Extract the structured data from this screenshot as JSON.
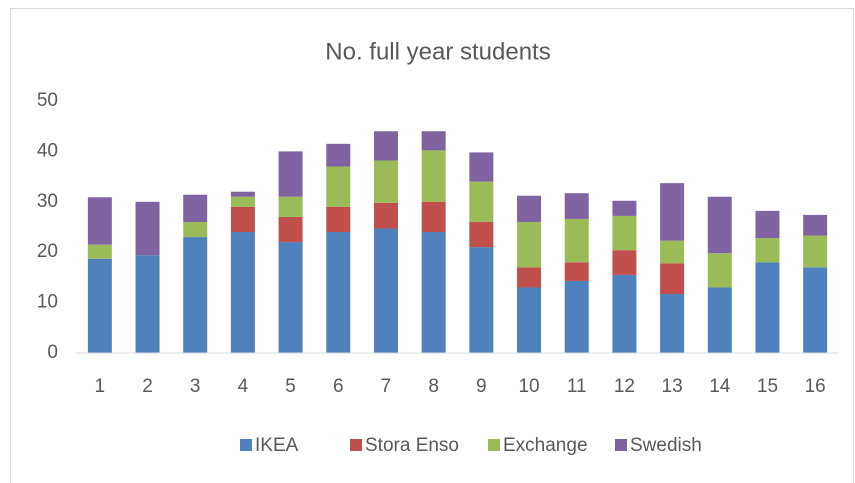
{
  "chart_data": {
    "type": "bar",
    "stacked": true,
    "title": "No. full year students",
    "categories": [
      "1",
      "2",
      "3",
      "4",
      "5",
      "6",
      "7",
      "8",
      "9",
      "10",
      "11",
      "12",
      "13",
      "14",
      "15",
      "16"
    ],
    "series": [
      {
        "name": "IKEA",
        "color": "#4f81bd",
        "values": [
          18.7,
          19.4,
          23,
          24,
          22,
          24,
          24.7,
          24,
          21,
          13,
          14.3,
          15.5,
          11.7,
          13,
          18,
          17
        ]
      },
      {
        "name": "Stora Enso",
        "color": "#c0504d",
        "values": [
          0,
          0,
          0,
          5,
          5,
          5,
          5.1,
          6,
          5,
          4,
          3.7,
          4.9,
          6.1,
          0,
          0,
          0
        ]
      },
      {
        "name": "Exchange",
        "color": "#9bbb59",
        "values": [
          2.8,
          0,
          3,
          2,
          4,
          8,
          8.4,
          10.2,
          8,
          9,
          8.6,
          6.8,
          4.5,
          6.8,
          4.8,
          6.3
        ]
      },
      {
        "name": "Swedish",
        "color": "#8064a2",
        "values": [
          9.4,
          10.6,
          5.4,
          1,
          9,
          4.5,
          5.8,
          3.8,
          5.8,
          5.2,
          5.1,
          3,
          11.4,
          11.2,
          5.4,
          4.1
        ]
      }
    ],
    "ylim": [
      0,
      50
    ],
    "yticks": [
      0,
      10,
      20,
      30,
      40,
      50
    ],
    "grid": false,
    "legend": "bottom"
  }
}
